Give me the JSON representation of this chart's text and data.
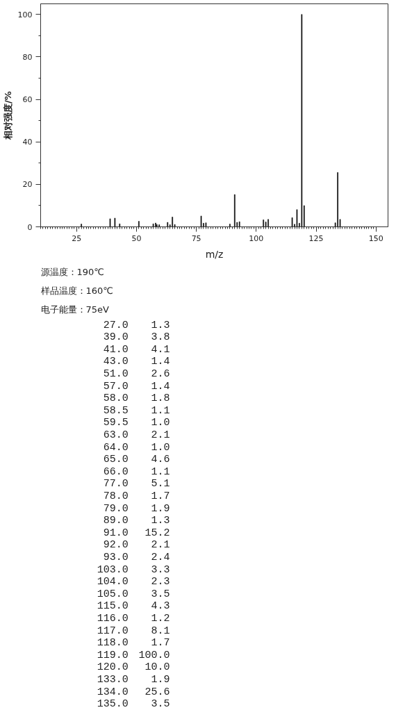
{
  "chart_data": {
    "type": "bar",
    "xlabel": "m/z",
    "ylabel": "相对强度/%",
    "annotations": [
      "源温度：190℃",
      "样品温度：160℃",
      "电子能量：75eV",
      "27.0",
      "1.3",
      "39.0",
      "3.8",
      "41.0",
      "4.1",
      "43.0",
      "1.4",
      "51.0",
      "2.6",
      "57.0",
      "1.4",
      "58.0",
      "1.8",
      "58.5",
      "1.1",
      "59.5",
      "1.0",
      "63.0",
      "2.1",
      "64.0",
      "1.0",
      "65.0",
      "4.6",
      "66.0",
      "1.1",
      "77.0",
      "5.1",
      "78.0",
      "1.7",
      "79.0",
      "1.9",
      "89.0",
      "1.3",
      "91.0",
      "15.2",
      "92.0",
      "2.1",
      "93.0",
      "2.4",
      "103.0",
      "3.3",
      "104.0",
      "2.3",
      "105.0",
      "3.5",
      "115.0",
      "4.3",
      "116.0",
      "1.2",
      "117.0",
      "8.1",
      "118.0",
      "1.7",
      "119.0",
      "100.0",
      "120.0",
      "10.0",
      "133.0",
      "1.9",
      "134.0",
      "25.6",
      "135.0",
      "3.5"
    ],
    "x": [
      27,
      39,
      41,
      43,
      51,
      57,
      58,
      58.5,
      59.5,
      63,
      64,
      65,
      66,
      77,
      78,
      79,
      89,
      91,
      92,
      93,
      103,
      104,
      105,
      115,
      116,
      117,
      118,
      119,
      120,
      133,
      134,
      135
    ],
    "values": [
      1.3,
      3.8,
      4.1,
      1.4,
      2.6,
      1.4,
      1.8,
      1.1,
      1.0,
      2.1,
      1.0,
      4.6,
      1.1,
      5.1,
      1.7,
      1.9,
      1.3,
      15.2,
      2.1,
      2.4,
      3.3,
      2.3,
      3.5,
      4.3,
      1.2,
      8.1,
      1.7,
      100.0,
      10.0,
      1.9,
      25.6,
      3.5
    ],
    "color": "#000000",
    "xlim": [
      10,
      155
    ],
    "ylim": [
      0,
      105
    ],
    "yticks": [
      0,
      {
        "value": 10,
        "label": null
      },
      20,
      {
        "value": 30,
        "label": null
      },
      40,
      {
        "value": 50,
        "label": null
      },
      60,
      {
        "value": 70,
        "label": null
      },
      80,
      {
        "value": 90,
        "label": null
      },
      100
    ],
    "xticks": [
      {
        "value": 10,
        "label": null
      },
      {
        "value": 11,
        "label": null
      },
      {
        "value": 12,
        "label": null
      },
      {
        "value": 13,
        "label": null
      },
      {
        "value": 14,
        "label": null
      },
      {
        "value": 15,
        "label": null
      },
      {
        "value": 16,
        "label": null
      },
      {
        "value": 17,
        "label": null
      },
      {
        "value": 18,
        "label": null
      },
      {
        "value": 19,
        "label": null
      },
      {
        "value": 20,
        "label": null
      },
      {
        "value": 21,
        "label": null
      },
      {
        "value": 22,
        "label": null
      },
      {
        "value": 23,
        "label": null
      },
      {
        "value": 24,
        "label": null
      },
      25,
      {
        "value": 26,
        "label": null
      },
      {
        "value": 27,
        "label": null
      },
      {
        "value": 28,
        "label": null
      },
      {
        "value": 29,
        "label": null
      },
      {
        "value": 30,
        "label": null
      },
      {
        "value": 31,
        "label": null
      },
      {
        "value": 32,
        "label": null
      },
      {
        "value": 33,
        "label": null
      },
      {
        "value": 34,
        "label": null
      },
      {
        "value": 35,
        "label": null
      },
      {
        "value": 36,
        "label": null
      },
      {
        "value": 37,
        "label": null
      },
      {
        "value": 38,
        "label": null
      },
      {
        "value": 39,
        "label": null
      },
      {
        "value": 40,
        "label": null
      },
      {
        "value": 41,
        "label": null
      },
      {
        "value": 42,
        "label": null
      },
      {
        "value": 43,
        "label": null
      },
      {
        "value": 44,
        "label": null
      },
      {
        "value": 45,
        "label": null
      },
      {
        "value": 46,
        "label": null
      },
      {
        "value": 47,
        "label": null
      },
      {
        "value": 48,
        "label": null
      },
      {
        "value": 49,
        "label": null
      },
      50,
      {
        "value": 51,
        "label": null
      },
      {
        "value": 52,
        "label": null
      },
      {
        "value": 53,
        "label": null
      },
      {
        "value": 54,
        "label": null
      },
      {
        "value": 55,
        "label": null
      },
      {
        "value": 56,
        "label": null
      },
      {
        "value": 57,
        "label": null
      },
      {
        "value": 58,
        "label": null
      },
      {
        "value": 59,
        "label": null
      },
      {
        "value": 60,
        "label": null
      },
      {
        "value": 61,
        "label": null
      },
      {
        "value": 62,
        "label": null
      },
      {
        "value": 63,
        "label": null
      },
      {
        "value": 64,
        "label": null
      },
      {
        "value": 65,
        "label": null
      },
      {
        "value": 66,
        "label": null
      },
      {
        "value": 67,
        "label": null
      },
      {
        "value": 68,
        "label": null
      },
      {
        "value": 69,
        "label": null
      },
      {
        "value": 70,
        "label": null
      },
      {
        "value": 71,
        "label": null
      },
      {
        "value": 72,
        "label": null
      },
      {
        "value": 73,
        "label": null
      },
      {
        "value": 74,
        "label": null
      },
      75,
      {
        "value": 76,
        "label": null
      },
      {
        "value": 77,
        "label": null
      },
      {
        "value": 78,
        "label": null
      },
      {
        "value": 79,
        "label": null
      },
      {
        "value": 80,
        "label": null
      },
      {
        "value": 81,
        "label": null
      },
      {
        "value": 82,
        "label": null
      },
      {
        "value": 83,
        "label": null
      },
      {
        "value": 84,
        "label": null
      },
      {
        "value": 85,
        "label": null
      },
      {
        "value": 86,
        "label": null
      },
      {
        "value": 87,
        "label": null
      },
      {
        "value": 88,
        "label": null
      },
      {
        "value": 89,
        "label": null
      },
      {
        "value": 90,
        "label": null
      },
      {
        "value": 91,
        "label": null
      },
      {
        "value": 92,
        "label": null
      },
      {
        "value": 93,
        "label": null
      },
      {
        "value": 94,
        "label": null
      },
      {
        "value": 95,
        "label": null
      },
      {
        "value": 96,
        "label": null
      },
      {
        "value": 97,
        "label": null
      },
      {
        "value": 98,
        "label": null
      },
      {
        "value": 99,
        "label": null
      },
      100,
      {
        "value": 101,
        "label": null
      },
      {
        "value": 102,
        "label": null
      },
      {
        "value": 103,
        "label": null
      },
      {
        "value": 104,
        "label": null
      },
      {
        "value": 105,
        "label": null
      },
      {
        "value": 106,
        "label": null
      },
      {
        "value": 107,
        "label": null
      },
      {
        "value": 108,
        "label": null
      },
      {
        "value": 109,
        "label": null
      },
      {
        "value": 110,
        "label": null
      },
      {
        "value": 111,
        "label": null
      },
      {
        "value": 112,
        "label": null
      },
      {
        "value": 113,
        "label": null
      },
      {
        "value": 114,
        "label": null
      },
      {
        "value": 115,
        "label": null
      },
      {
        "value": 116,
        "label": null
      },
      {
        "value": 117,
        "label": null
      },
      {
        "value": 118,
        "label": null
      },
      {
        "value": 119,
        "label": null
      },
      {
        "value": 120,
        "label": null
      },
      {
        "value": 121,
        "label": null
      },
      {
        "value": 122,
        "label": null
      },
      {
        "value": 123,
        "label": null
      },
      {
        "value": 124,
        "label": null
      },
      125,
      {
        "value": 126,
        "label": null
      },
      {
        "value": 127,
        "label": null
      },
      {
        "value": 128,
        "label": null
      },
      {
        "value": 129,
        "label": null
      },
      {
        "value": 130,
        "label": null
      },
      {
        "value": 131,
        "label": null
      },
      {
        "value": 132,
        "label": null
      },
      {
        "value": 133,
        "label": null
      },
      {
        "value": 134,
        "label": null
      },
      {
        "value": 135,
        "label": null
      },
      {
        "value": 136,
        "label": null
      },
      {
        "value": 137,
        "label": null
      },
      {
        "value": 138,
        "label": null
      },
      {
        "value": 139,
        "label": null
      },
      {
        "value": 140,
        "label": null
      },
      {
        "value": 141,
        "label": null
      },
      {
        "value": 142,
        "label": null
      },
      {
        "value": 143,
        "label": null
      },
      {
        "value": 144,
        "label": null
      },
      {
        "value": 145,
        "label": null
      },
      {
        "value": 146,
        "label": null
      },
      {
        "value": 147,
        "label": null
      },
      {
        "value": 148,
        "label": null
      },
      {
        "value": 149,
        "label": null
      },
      150
    ]
  }
}
